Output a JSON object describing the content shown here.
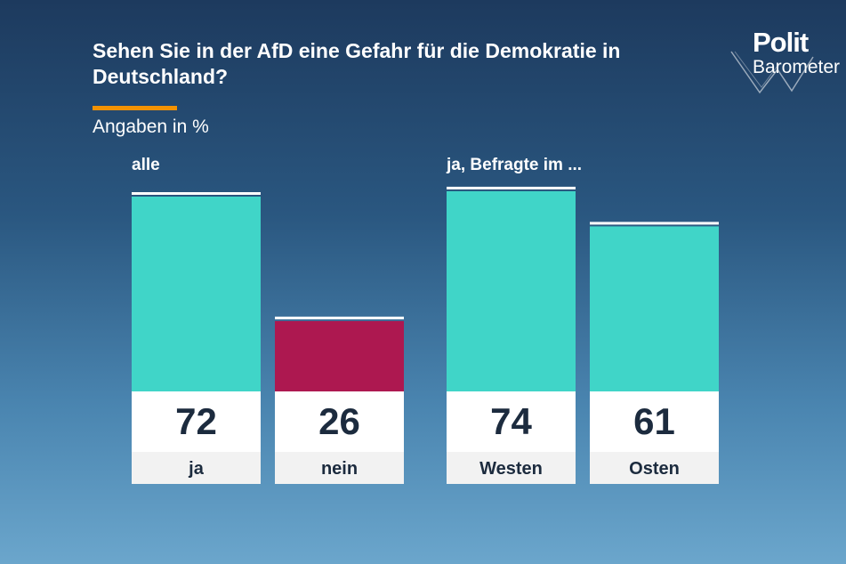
{
  "header": {
    "title": "Sehen Sie in der AfD eine Gefahr für die Demokratie in Deutschland?",
    "subtitle": "Angaben in %"
  },
  "logo": {
    "line1": "Polit",
    "line2": "Barometer"
  },
  "colors": {
    "accent_line": "#f39200",
    "ja": "#40d5c8",
    "nein": "#ad1850",
    "value_box": "#ffffff",
    "label_box": "#f2f2f2",
    "text_dark": "#1c2b3e"
  },
  "chart_data": [
    {
      "type": "bar",
      "group_label": "alle",
      "categories": [
        "ja",
        "nein"
      ],
      "values": [
        72,
        26
      ],
      "bar_colors": [
        "#40d5c8",
        "#ad1850"
      ],
      "ylim": [
        0,
        100
      ]
    },
    {
      "type": "bar",
      "group_label": "ja, Befragte im ...",
      "categories": [
        "Westen",
        "Osten"
      ],
      "values": [
        74,
        61
      ],
      "bar_colors": [
        "#40d5c8",
        "#40d5c8"
      ],
      "ylim": [
        0,
        100
      ]
    }
  ]
}
